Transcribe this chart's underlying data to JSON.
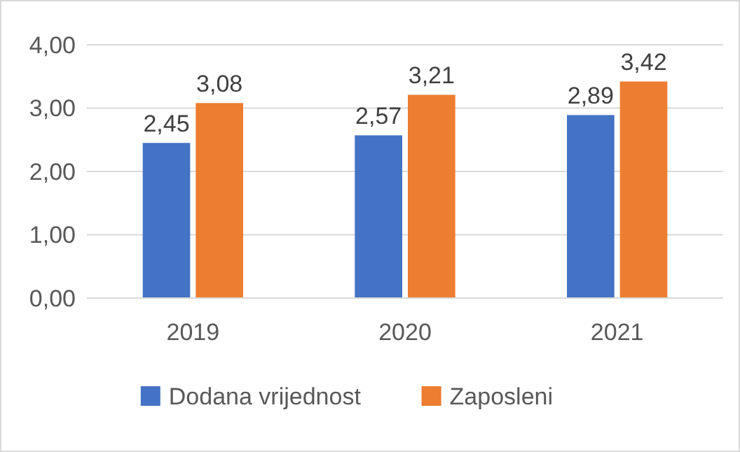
{
  "chart_data": {
    "type": "bar",
    "categories": [
      "2019",
      "2020",
      "2021"
    ],
    "series": [
      {
        "name": "Dodana vrijednost",
        "color": "#4472c4",
        "values": [
          2.45,
          2.57,
          2.89
        ],
        "value_labels": [
          "2,45",
          "2,57",
          "2,89"
        ]
      },
      {
        "name": "Zaposleni",
        "color": "#ed7d31",
        "values": [
          3.08,
          3.21,
          3.42
        ],
        "value_labels": [
          "3,08",
          "3,21",
          "3,42"
        ]
      }
    ],
    "ylim": [
      0,
      4
    ],
    "yticks": [
      {
        "value": 0,
        "label": "0,00"
      },
      {
        "value": 1,
        "label": "1,00"
      },
      {
        "value": 2,
        "label": "2,00"
      },
      {
        "value": 3,
        "label": "3,00"
      },
      {
        "value": 4,
        "label": "4,00"
      }
    ],
    "grid": "y",
    "legend": "bottom"
  }
}
